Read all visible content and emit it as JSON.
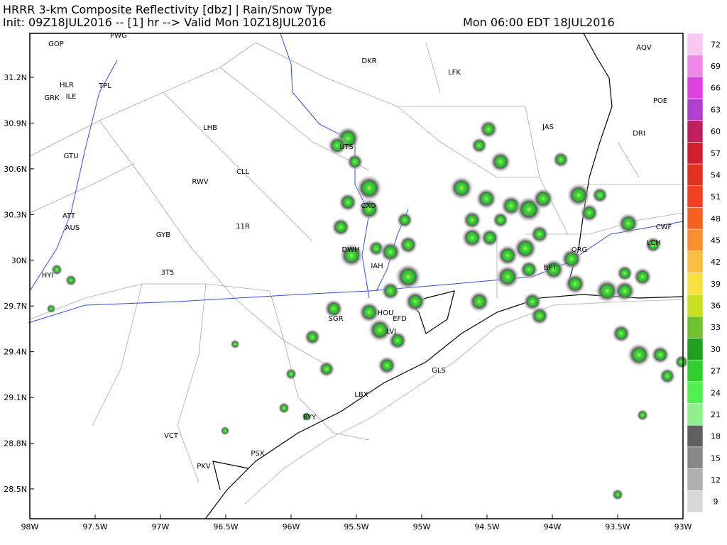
{
  "header": {
    "title": "HRRR 3-km Composite Reflectivity [dbz] | Rain/Snow Type",
    "init": "Init: 09Z18JUL2016 -- [1] hr --> Valid Mon 10Z18JUL2016",
    "local_time": "Mon 06:00 EDT 18JUL2016"
  },
  "map": {
    "lat_labels": [
      "31.2N",
      "30.9N",
      "30.6N",
      "30.3N",
      "30N",
      "29.7N",
      "29.4N",
      "29.1N",
      "28.8N",
      "28.5N"
    ],
    "lon_labels": [
      "98W",
      "97.5W",
      "97W",
      "96.5W",
      "96W",
      "95.5W",
      "95W",
      "94.5W",
      "94W",
      "93.5W",
      "93W"
    ],
    "stations": [
      "GOP",
      "PWG",
      "HLR",
      "GRK",
      "ILE",
      "TPL",
      "DKR",
      "LFK",
      "AQV",
      "POE",
      "DRI",
      "LHB",
      "JAS",
      "UTS",
      "GTU",
      "CLL",
      "RWV",
      "CXO",
      "ATT",
      "AUS",
      "GYB",
      "11R",
      "DWH",
      "ORG",
      "LCH",
      "CWF",
      "IAH",
      "BPT",
      "3T5",
      "HYI",
      "SGR",
      "HOU",
      "EFD",
      "LVJ",
      "GLS",
      "LBX",
      "BYY",
      "VCT",
      "PSX",
      "PKV"
    ]
  },
  "colorbar": {
    "levels": [
      72,
      69,
      66,
      63,
      60,
      57,
      54,
      51,
      48,
      45,
      42,
      39,
      36,
      33,
      30,
      27,
      24,
      21,
      18,
      15,
      12,
      9
    ],
    "colors": [
      "#f8c8f0",
      "#f088e8",
      "#e040e0",
      "#b040d0",
      "#c02060",
      "#d02030",
      "#e03020",
      "#f04020",
      "#f86020",
      "#f89030",
      "#f8c040",
      "#f8e040",
      "#c8e020",
      "#70c030",
      "#20a020",
      "#30d030",
      "#50f050",
      "#90f090",
      "#606060",
      "#888888",
      "#b0b0b0",
      "#d8d8d8"
    ]
  }
}
